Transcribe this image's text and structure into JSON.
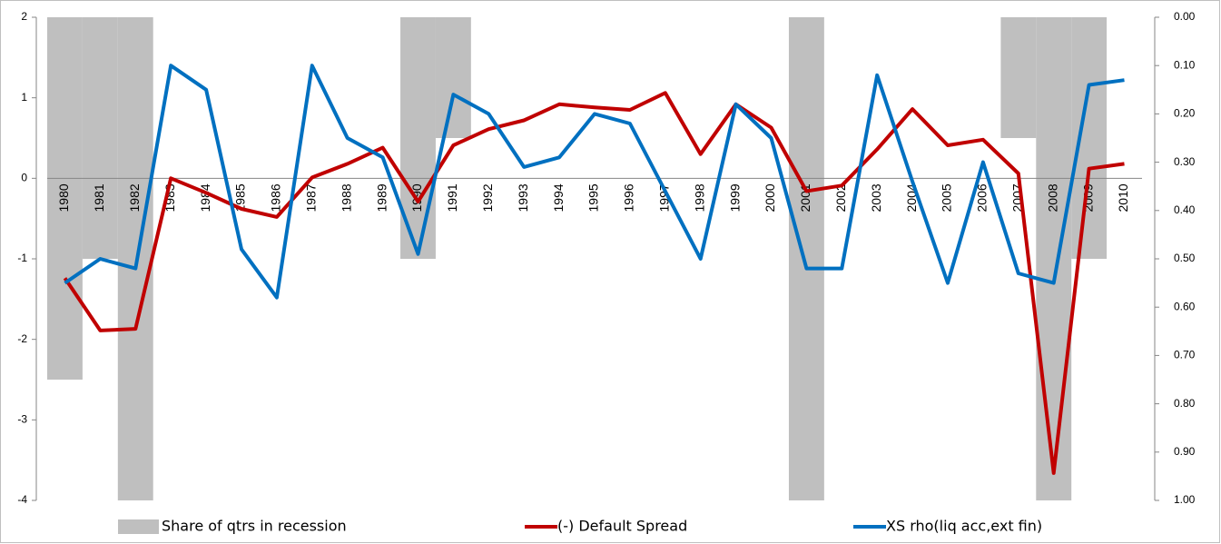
{
  "chart_data": {
    "type": "combo",
    "categories": [
      "1980",
      "1981",
      "1982",
      "1983",
      "1984",
      "1985",
      "1986",
      "1987",
      "1988",
      "1989",
      "1990",
      "1991",
      "1992",
      "1993",
      "1994",
      "1995",
      "1996",
      "1997",
      "1998",
      "1999",
      "2000",
      "2001",
      "2002",
      "2003",
      "2004",
      "2005",
      "2006",
      "2007",
      "2008",
      "2009",
      "2010"
    ],
    "series": [
      {
        "name": "Share of qtrs in recession",
        "type": "bar",
        "axis": "y2",
        "color": "#bfbfbf",
        "values": [
          0.75,
          0.5,
          1,
          0,
          0,
          0,
          0,
          0,
          0,
          0,
          0.5,
          0.25,
          0,
          0,
          0,
          0,
          0,
          0,
          0,
          0,
          0,
          1,
          0,
          0,
          0,
          0,
          0,
          0.25,
          1,
          0.5,
          0
        ]
      },
      {
        "name": "(-) Default Spread",
        "type": "line",
        "color": "#c00000",
        "values": [
          -1.24,
          -1.89,
          -1.87,
          0,
          -0.18,
          -0.38,
          -0.48,
          0.01,
          0.18,
          0.38,
          -0.29,
          0.41,
          0.61,
          0.72,
          0.92,
          0.88,
          0.85,
          1.06,
          0.3,
          0.92,
          0.63,
          -0.16,
          -0.09,
          0.36,
          0.86,
          0.41,
          0.48,
          0.06,
          -3.66,
          0.12,
          0.18
        ]
      },
      {
        "name": "XS rho(liq acc,ext fin)",
        "type": "line",
        "axis": "y2",
        "color": "#0070c0",
        "values": [
          0.55,
          0.5,
          0.52,
          0.1,
          0.15,
          0.48,
          0.58,
          0.1,
          0.25,
          0.29,
          0.49,
          0.16,
          0.2,
          0.31,
          0.29,
          0.2,
          0.22,
          0.36,
          0.5,
          0.18,
          0.25,
          0.52,
          0.52,
          0.12,
          0.34,
          0.55,
          0.3,
          0.53,
          0.55,
          0.14,
          0.13
        ]
      }
    ],
    "ylim": [
      -4,
      2
    ],
    "yticks": [
      -4,
      -3,
      -2,
      -1,
      0,
      1,
      2
    ],
    "y2lim": [
      1,
      0
    ],
    "y2ticks": [
      {
        "value": 0,
        "label": "0.00"
      },
      {
        "value": 0.1,
        "label": "0.10"
      },
      {
        "value": 0.2,
        "label": "0.20"
      },
      {
        "value": 0.3,
        "label": "0.30"
      },
      {
        "value": 0.4,
        "label": "0.40"
      },
      {
        "value": 0.5,
        "label": "0.50"
      },
      {
        "value": 0.6,
        "label": "0.60"
      },
      {
        "value": 0.7,
        "label": "0.70"
      },
      {
        "value": 0.8,
        "label": "0.80"
      },
      {
        "value": 0.9,
        "label": "0.90"
      },
      {
        "value": 1,
        "label": "1.00"
      }
    ],
    "grid": false,
    "legend": "bottom"
  }
}
